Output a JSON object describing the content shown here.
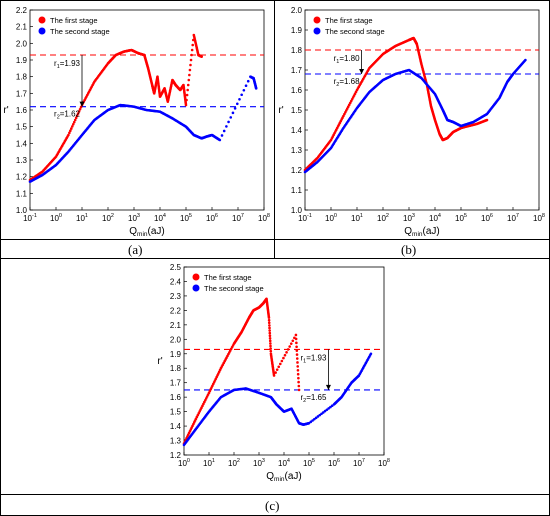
{
  "figure": {
    "panel_labels": [
      "(a)",
      "(b)",
      "(c)"
    ]
  },
  "chart_data": [
    {
      "type": "scatter",
      "xlabel": "Q_min(aJ)",
      "ylabel": "r'",
      "xscale": "log",
      "xlim": [
        0.1,
        100000000
      ],
      "ylim": [
        1.0,
        2.2
      ],
      "yticks": [
        1.0,
        1.1,
        1.2,
        1.3,
        1.4,
        1.5,
        1.6,
        1.7,
        1.8,
        1.9,
        2.0,
        2.1,
        2.2
      ],
      "xtick_labels": [
        "10-1",
        "100",
        "101",
        "102",
        "103",
        "104",
        "105",
        "106",
        "107",
        "108"
      ],
      "legend": [
        "The first stage",
        "The second stage"
      ],
      "legend_position": "top-left",
      "series": [
        {
          "name": "The first stage",
          "color": "#ff0000",
          "points": [
            [
              0.1,
              1.18
            ],
            [
              0.3,
              1.23
            ],
            [
              1,
              1.32
            ],
            [
              3,
              1.45
            ],
            [
              10,
              1.63
            ],
            [
              30,
              1.77
            ],
            [
              100,
              1.88
            ],
            [
              200,
              1.93
            ],
            [
              400,
              1.95
            ],
            [
              800,
              1.96
            ],
            [
              1500,
              1.94
            ],
            [
              2500,
              1.93
            ],
            [
              3500,
              1.85
            ],
            [
              5000,
              1.75
            ],
            [
              6000,
              1.7
            ],
            [
              8000,
              1.8
            ],
            [
              10000,
              1.68
            ],
            [
              15000,
              1.73
            ],
            [
              20000,
              1.65
            ],
            [
              30000,
              1.78
            ],
            [
              40000,
              1.75
            ],
            [
              60000,
              1.72
            ],
            [
              80000,
              1.75
            ],
            [
              100000,
              1.63
            ],
            [
              200000,
              2.05
            ],
            [
              300000,
              1.93
            ],
            [
              400000,
              1.92
            ]
          ]
        },
        {
          "name": "The second stage",
          "color": "#0000ff",
          "points": [
            [
              0.1,
              1.17
            ],
            [
              0.3,
              1.21
            ],
            [
              1,
              1.27
            ],
            [
              3,
              1.35
            ],
            [
              10,
              1.45
            ],
            [
              30,
              1.54
            ],
            [
              100,
              1.6
            ],
            [
              300,
              1.63
            ],
            [
              1000,
              1.62
            ],
            [
              3000,
              1.6
            ],
            [
              10000,
              1.59
            ],
            [
              30000,
              1.55
            ],
            [
              100000,
              1.5
            ],
            [
              200000,
              1.45
            ],
            [
              400000,
              1.43
            ],
            [
              600000,
              1.44
            ],
            [
              1000000,
              1.45
            ],
            [
              2000000,
              1.42
            ],
            [
              30000000,
              1.8
            ],
            [
              40000000,
              1.79
            ],
            [
              50000000,
              1.73
            ]
          ]
        }
      ],
      "reference_lines": [
        {
          "label": "r1=1.93",
          "value": 1.93,
          "color": "#ff0000"
        },
        {
          "label": "r2=1.62",
          "value": 1.62,
          "color": "#0000ff"
        }
      ],
      "annotation_arrow": {
        "x": 10,
        "from": 1.93,
        "to": 1.62
      }
    },
    {
      "type": "scatter",
      "xlabel": "Q_min(aJ)",
      "ylabel": "r'",
      "xscale": "log",
      "xlim": [
        0.1,
        100000000
      ],
      "ylim": [
        1.0,
        2.0
      ],
      "yticks": [
        1.0,
        1.1,
        1.2,
        1.3,
        1.4,
        1.5,
        1.6,
        1.7,
        1.8,
        1.9,
        2.0
      ],
      "xtick_labels": [
        "10-1",
        "100",
        "101",
        "102",
        "103",
        "104",
        "105",
        "106",
        "107",
        "108"
      ],
      "legend": [
        "The first stage",
        "The second stage"
      ],
      "legend_position": "top-left",
      "series": [
        {
          "name": "The first stage",
          "color": "#ff0000",
          "points": [
            [
              0.1,
              1.2
            ],
            [
              0.3,
              1.26
            ],
            [
              1,
              1.35
            ],
            [
              3,
              1.47
            ],
            [
              10,
              1.6
            ],
            [
              30,
              1.71
            ],
            [
              100,
              1.78
            ],
            [
              300,
              1.82
            ],
            [
              1000,
              1.85
            ],
            [
              1500,
              1.86
            ],
            [
              2000,
              1.83
            ],
            [
              3000,
              1.73
            ],
            [
              5000,
              1.62
            ],
            [
              7000,
              1.52
            ],
            [
              10000,
              1.45
            ],
            [
              15000,
              1.38
            ],
            [
              20000,
              1.35
            ],
            [
              30000,
              1.36
            ],
            [
              50000,
              1.39
            ],
            [
              100000,
              1.41
            ],
            [
              400000,
              1.43
            ],
            [
              1000000,
              1.45
            ]
          ]
        },
        {
          "name": "The second stage",
          "color": "#0000ff",
          "points": [
            [
              0.1,
              1.19
            ],
            [
              0.3,
              1.24
            ],
            [
              1,
              1.31
            ],
            [
              3,
              1.41
            ],
            [
              10,
              1.51
            ],
            [
              30,
              1.59
            ],
            [
              100,
              1.65
            ],
            [
              300,
              1.68
            ],
            [
              1000,
              1.7
            ],
            [
              3000,
              1.66
            ],
            [
              10000,
              1.58
            ],
            [
              20000,
              1.5
            ],
            [
              30000,
              1.45
            ],
            [
              50000,
              1.44
            ],
            [
              100000,
              1.42
            ],
            [
              300000,
              1.44
            ],
            [
              1000000,
              1.48
            ],
            [
              3000000,
              1.56
            ],
            [
              6000000,
              1.64
            ],
            [
              10000000,
              1.68
            ],
            [
              30000000,
              1.75
            ]
          ]
        }
      ],
      "reference_lines": [
        {
          "label": "r1=1.80",
          "value": 1.8,
          "color": "#ff0000"
        },
        {
          "label": "r2=1.68",
          "value": 1.68,
          "color": "#0000ff"
        }
      ],
      "annotation_arrow": {
        "x": 15,
        "from": 1.8,
        "to": 1.68
      }
    },
    {
      "type": "scatter",
      "xlabel": "Q_min(aJ)",
      "ylabel": "r'",
      "xscale": "log",
      "xlim": [
        1,
        100000000
      ],
      "ylim": [
        1.2,
        2.5
      ],
      "yticks": [
        1.2,
        1.3,
        1.4,
        1.5,
        1.6,
        1.7,
        1.8,
        1.9,
        2.0,
        2.1,
        2.2,
        2.3,
        2.4,
        2.5
      ],
      "xtick_labels": [
        "100",
        "101",
        "102",
        "103",
        "104",
        "105",
        "106",
        "107",
        "108"
      ],
      "legend": [
        "The first stage",
        "The second stage"
      ],
      "legend_position": "top-left",
      "series": [
        {
          "name": "The first stage",
          "color": "#ff0000",
          "points": [
            [
              1,
              1.28
            ],
            [
              3,
              1.45
            ],
            [
              10,
              1.63
            ],
            [
              30,
              1.8
            ],
            [
              100,
              1.97
            ],
            [
              200,
              2.05
            ],
            [
              400,
              2.15
            ],
            [
              600,
              2.2
            ],
            [
              1000,
              2.22
            ],
            [
              1500,
              2.25
            ],
            [
              2000,
              2.28
            ],
            [
              2500,
              2.15
            ],
            [
              3000,
              1.9
            ],
            [
              4000,
              1.75
            ],
            [
              30000,
              2.03
            ],
            [
              40000,
              1.65
            ]
          ]
        },
        {
          "name": "The second stage",
          "color": "#0000ff",
          "points": [
            [
              1,
              1.27
            ],
            [
              3,
              1.38
            ],
            [
              10,
              1.5
            ],
            [
              30,
              1.6
            ],
            [
              100,
              1.65
            ],
            [
              300,
              1.66
            ],
            [
              1000,
              1.63
            ],
            [
              3000,
              1.6
            ],
            [
              5000,
              1.55
            ],
            [
              10000,
              1.5
            ],
            [
              20000,
              1.52
            ],
            [
              40000,
              1.42
            ],
            [
              60000,
              1.41
            ],
            [
              100000,
              1.42
            ],
            [
              1000000,
              1.55
            ],
            [
              2000000,
              1.6
            ],
            [
              5000000,
              1.7
            ],
            [
              10000000,
              1.75
            ],
            [
              30000000,
              1.9
            ]
          ]
        }
      ],
      "reference_lines": [
        {
          "label": "r1=1.93",
          "value": 1.93,
          "color": "#ff0000"
        },
        {
          "label": "r2=1.65",
          "value": 1.65,
          "color": "#0000ff"
        }
      ],
      "annotation_arrow": {
        "x": 600000,
        "from": 1.93,
        "to": 1.65
      }
    }
  ]
}
